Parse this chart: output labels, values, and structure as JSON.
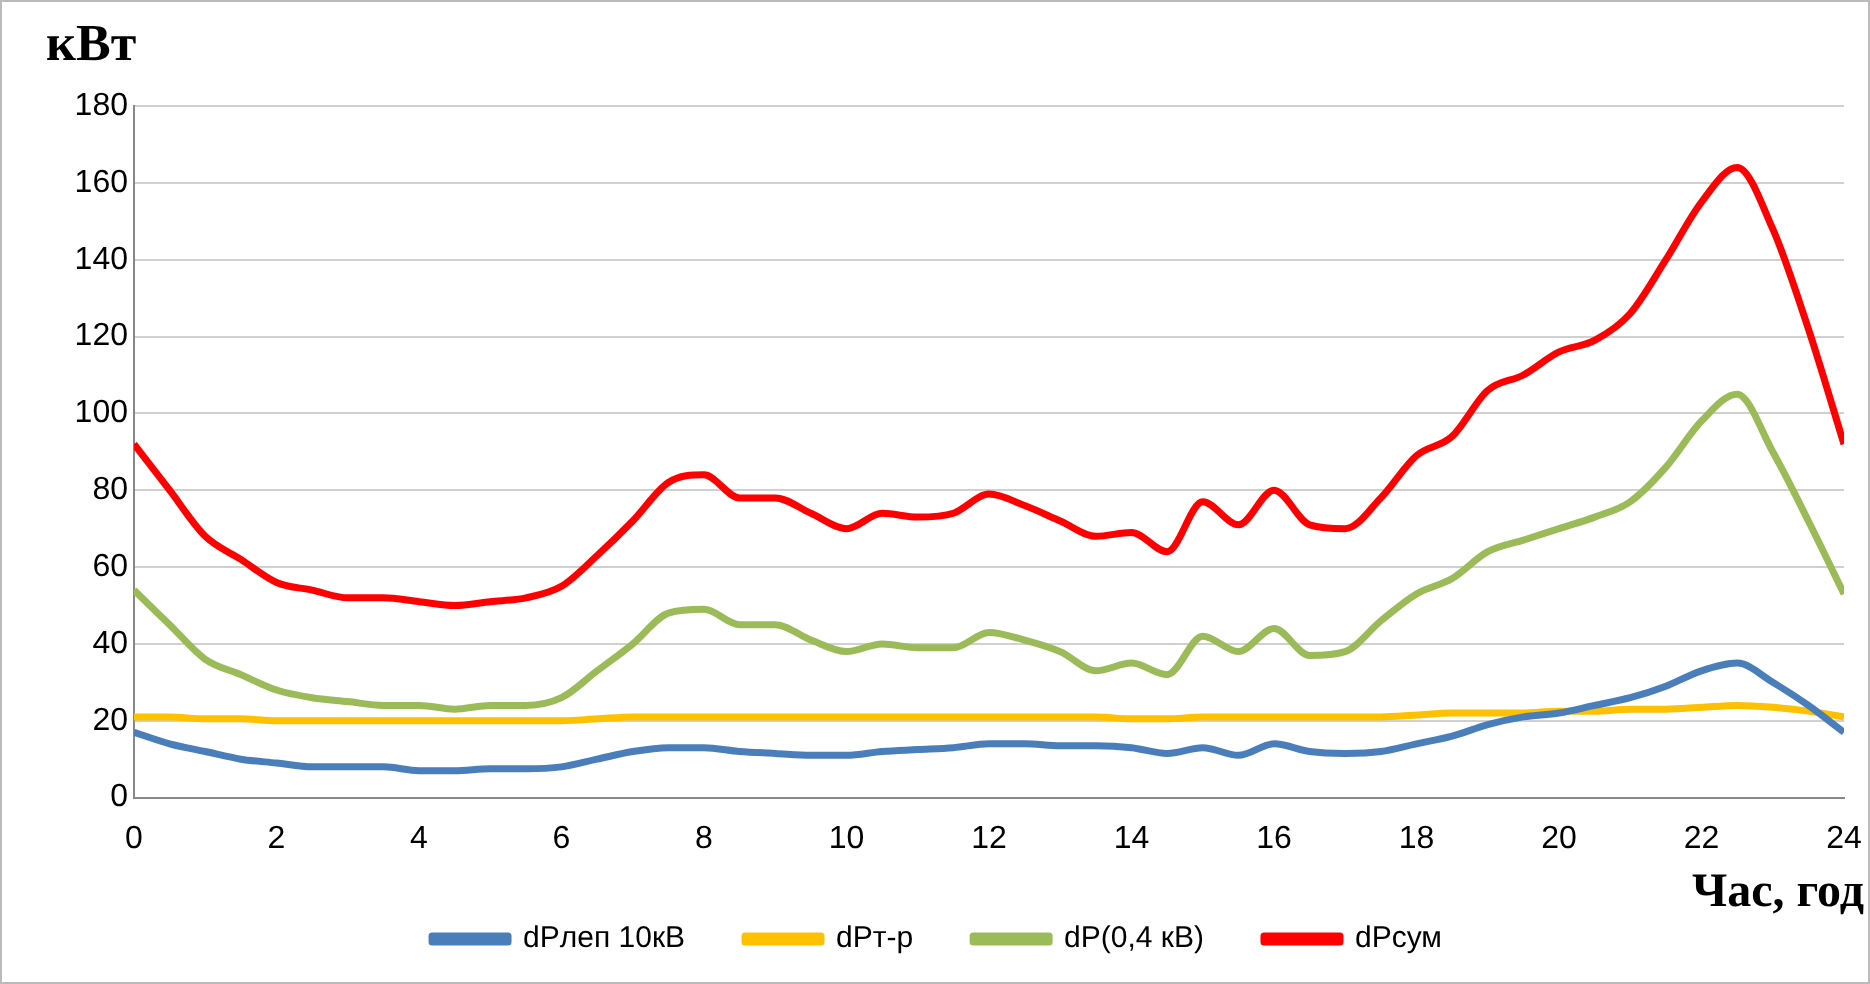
{
  "chart_data": {
    "type": "line",
    "ylabel": "кВт",
    "xlabel": "Час, год",
    "x": [
      0,
      0.5,
      1,
      1.5,
      2,
      2.5,
      3,
      3.5,
      4,
      4.5,
      5,
      5.5,
      6,
      6.5,
      7,
      7.5,
      8,
      8.5,
      9,
      9.5,
      10,
      10.5,
      11,
      11.5,
      12,
      12.5,
      13,
      13.5,
      14,
      14.5,
      15,
      15.5,
      16,
      16.5,
      17,
      17.5,
      18,
      18.5,
      19,
      19.5,
      20,
      20.5,
      21,
      21.5,
      22,
      22.5,
      23,
      23.5,
      24
    ],
    "series": [
      {
        "name": "dPлеп 10кВ",
        "color": "#4a7ebb",
        "values": [
          17,
          14,
          12,
          10,
          9,
          8,
          8,
          8,
          7,
          7,
          7.5,
          7.5,
          8,
          10,
          12,
          13,
          13,
          12,
          11.5,
          11,
          11,
          12,
          12.5,
          13,
          14,
          14,
          13.5,
          13.5,
          13,
          11.5,
          13,
          11,
          14,
          12,
          11.5,
          12,
          14,
          16,
          19,
          21,
          22,
          24,
          26,
          29,
          33,
          35,
          30,
          24,
          17
        ]
      },
      {
        "name": "dPт-р",
        "color": "#ffc000",
        "values": [
          21,
          21,
          20.5,
          20.5,
          20,
          20,
          20,
          20,
          20,
          20,
          20,
          20,
          20,
          20.5,
          21,
          21,
          21,
          21,
          21,
          21,
          21,
          21,
          21,
          21,
          21,
          21,
          21,
          21,
          20.5,
          20.5,
          21,
          21,
          21,
          21,
          21,
          21,
          21.5,
          22,
          22,
          22,
          22.5,
          22.5,
          23,
          23,
          23.5,
          24,
          23.5,
          22.5,
          21
        ]
      },
      {
        "name": "dP(0,4 кВ)",
        "color": "#9bbb59",
        "values": [
          54,
          45,
          36,
          32,
          28,
          26,
          25,
          24,
          24,
          23,
          24,
          24,
          26,
          33,
          40,
          48,
          49,
          45,
          45,
          41,
          38,
          40,
          39,
          39,
          43,
          41,
          38,
          33,
          35,
          32,
          42,
          38,
          44,
          37,
          38,
          46,
          53,
          57,
          64,
          67,
          70,
          73,
          77,
          86,
          98,
          105,
          90,
          72,
          53
        ]
      },
      {
        "name": "dPсум",
        "color": "#ff0000",
        "values": [
          92,
          80,
          68,
          62,
          56,
          54,
          52,
          52,
          51,
          50,
          51,
          52,
          55,
          63,
          72,
          82,
          84,
          78,
          78,
          74,
          70,
          74,
          73,
          74,
          79,
          76,
          72,
          68,
          69,
          64,
          77,
          71,
          80,
          71,
          70,
          78,
          89,
          94,
          106,
          110,
          116,
          119,
          126,
          140,
          155,
          164,
          148,
          122,
          92
        ]
      }
    ],
    "xlim": [
      0,
      24
    ],
    "xticks": [
      0,
      2,
      4,
      6,
      8,
      10,
      12,
      14,
      16,
      18,
      20,
      22,
      24
    ],
    "ylim": [
      0,
      180
    ],
    "yticks": [
      0,
      20,
      40,
      60,
      80,
      100,
      120,
      140,
      160,
      180
    ],
    "grid": "y",
    "legend": "bottom",
    "marker": "none",
    "line_style": "solid"
  }
}
